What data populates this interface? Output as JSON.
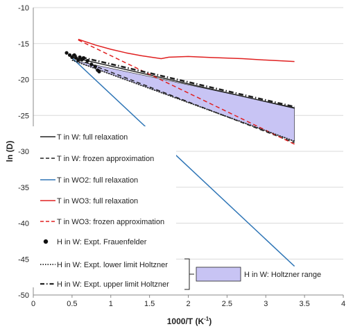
{
  "chart_data": {
    "type": "line",
    "title": "",
    "xlabel_main": "1000/T (K",
    "xlabel_sup": "-1",
    "xlabel_end": ")",
    "ylabel": "ln (D)",
    "xlim": [
      0,
      4
    ],
    "ylim": [
      -50,
      -10
    ],
    "xticks": [
      0,
      0.5,
      1,
      1.5,
      2,
      2.5,
      3,
      3.5,
      4
    ],
    "xtick_labels": [
      "0",
      "0.5",
      "1",
      "1.5",
      "2",
      "2.5",
      "3",
      "3.5",
      "4"
    ],
    "yticks": [
      -10,
      -15,
      -20,
      -25,
      -30,
      -35,
      -40,
      -45,
      -50
    ],
    "ytick_labels": [
      "-10",
      "-15",
      "-20",
      "-25",
      "-30",
      "-35",
      "-40",
      "-45",
      "-50"
    ],
    "grid": "horizontal",
    "legend_placement": "left",
    "series": [
      {
        "name": "T in W: full relaxation",
        "color": "#222222",
        "style": "solid",
        "x": [
          0.5,
          3.37
        ],
        "y": [
          -16.9,
          -24.0
        ]
      },
      {
        "name": "T in W: frozen approximation",
        "color": "#222222",
        "style": "dashed",
        "x": [
          0.5,
          3.37
        ],
        "y": [
          -16.9,
          -28.8
        ]
      },
      {
        "name": "T in WO2: full relaxation",
        "color": "#2e75b6",
        "style": "solid",
        "x": [
          0.5,
          3.37
        ],
        "y": [
          -17.0,
          -46.0
        ]
      },
      {
        "name": "T in WO3: full relaxation",
        "color": "#e02020",
        "style": "solid",
        "x": [
          0.58,
          0.8,
          1.0,
          1.2,
          1.4,
          1.65,
          1.75,
          2.0,
          2.3,
          2.7,
          3.0,
          3.37
        ],
        "y": [
          -14.4,
          -15.2,
          -15.8,
          -16.3,
          -16.7,
          -17.1,
          -16.9,
          -16.8,
          -16.95,
          -17.1,
          -17.3,
          -17.5
        ]
      },
      {
        "name": "T in WO3: frozen approximation",
        "color": "#e02020",
        "style": "dashed",
        "x": [
          0.58,
          3.37
        ],
        "y": [
          -14.5,
          -29.0
        ]
      },
      {
        "name": "H in W: Expt. lower limit Holtzner",
        "color": "#222222",
        "style": "dotted",
        "x": [
          0.5,
          3.37
        ],
        "y": [
          -17.3,
          -28.6
        ]
      },
      {
        "name": "H in W: Expt. upper limit Holtzner",
        "color": "#222222",
        "style": "dashdot",
        "x": [
          0.5,
          3.37
        ],
        "y": [
          -16.6,
          -23.8
        ]
      }
    ],
    "scatter": {
      "name": "H in W: Expt. Frauenfelder",
      "color": "#111111",
      "x": [
        0.43,
        0.47,
        0.5,
        0.53,
        0.55,
        0.58,
        0.6,
        0.63,
        0.65,
        0.7,
        0.75,
        0.8,
        0.83,
        0.85
      ],
      "y": [
        -16.3,
        -16.6,
        -16.9,
        -16.6,
        -17.0,
        -17.3,
        -16.9,
        -17.2,
        -17.0,
        -17.4,
        -17.9,
        -18.2,
        -18.7,
        -18.9
      ]
    },
    "band": {
      "name": "H in W: Holtzner range",
      "fill": "#c8c4f4",
      "x": [
        0.5,
        3.37
      ],
      "upper": [
        -17.3,
        -23.9
      ],
      "lower": [
        -17.3,
        -28.6
      ]
    }
  }
}
